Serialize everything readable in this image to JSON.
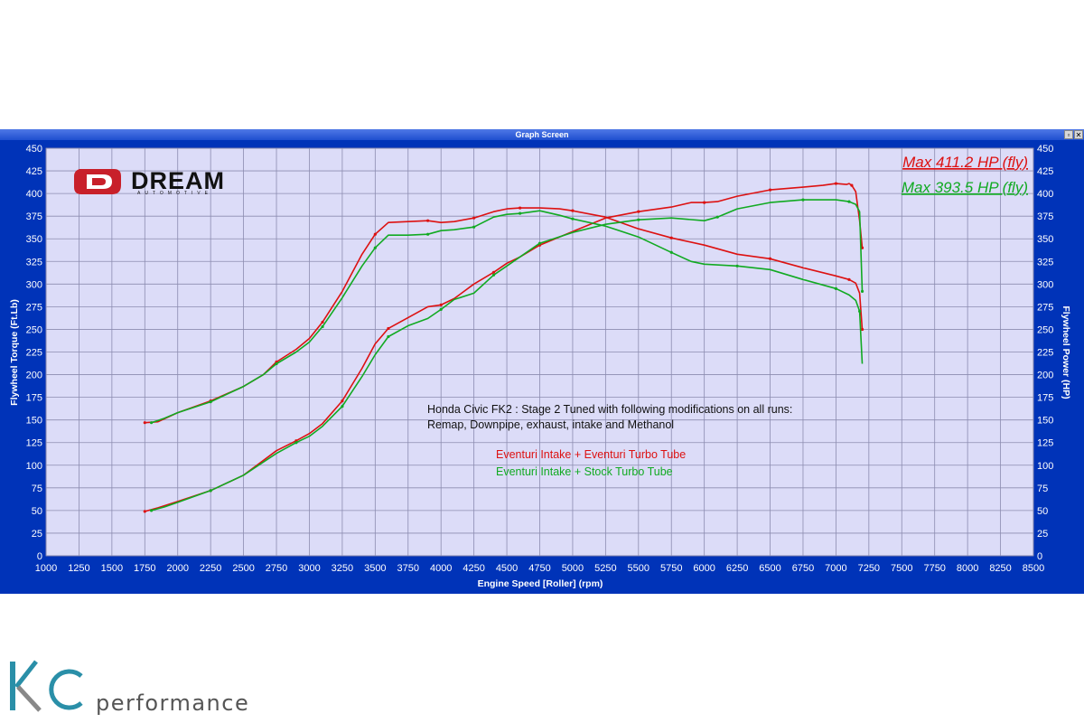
{
  "window": {
    "title": "Graph Screen",
    "minimize_label": "▫",
    "close_label": "✕"
  },
  "logos": {
    "dream": "DREAM",
    "dream_sub": "AUTOMOTIVE",
    "kc": "KC",
    "kc_word": "performance"
  },
  "chart_data": {
    "type": "line",
    "xlabel": "Engine Speed [Roller] (rpm)",
    "ylabel_left": "Flywheel Torque (Ft.Lb)",
    "ylabel_right": "Flywheel Power (HP)",
    "xlim": [
      1000,
      8500
    ],
    "ylim": [
      0,
      450
    ],
    "x_ticks": [
      1000,
      1250,
      1500,
      1750,
      2000,
      2250,
      2500,
      2750,
      3000,
      3250,
      3500,
      3750,
      4000,
      4250,
      4500,
      4750,
      5000,
      5250,
      5500,
      5750,
      6000,
      6250,
      6500,
      6750,
      7000,
      7250,
      7500,
      7750,
      8000,
      8250,
      8500
    ],
    "y_ticks": [
      0,
      25,
      50,
      75,
      100,
      125,
      150,
      175,
      200,
      225,
      250,
      275,
      300,
      325,
      350,
      375,
      400,
      425,
      450
    ],
    "grid": true,
    "max_labels": [
      {
        "text": "Max 411.2 HP (fly)",
        "color": "#dd1111"
      },
      {
        "text": "Max 393.5 HP (fly)",
        "color": "#11aa22"
      }
    ],
    "annotation": {
      "line1": "Honda Civic FK2 : Stage 2 Tuned with following modifications on all runs:",
      "line2": "Remap, Downpipe, exhaust, intake and Methanol"
    },
    "series": [
      {
        "name": "Eventuri Intake + Eventuri Turbo Tube",
        "color": "#dd1111",
        "torque": {
          "x": [
            1750,
            1850,
            2000,
            2250,
            2500,
            2650,
            2750,
            2900,
            3000,
            3100,
            3250,
            3400,
            3500,
            3600,
            3750,
            3900,
            4000,
            4100,
            4250,
            4400,
            4500,
            4600,
            4750,
            4900,
            5000,
            5250,
            5500,
            5750,
            6000,
            6250,
            6500,
            6750,
            7000,
            7100,
            7150,
            7180,
            7200
          ],
          "y": [
            147,
            148,
            158,
            171,
            187,
            200,
            214,
            228,
            240,
            258,
            292,
            333,
            355,
            368,
            369,
            370,
            368,
            369,
            373,
            380,
            383,
            384,
            384,
            383,
            381,
            374,
            361,
            351,
            343,
            333,
            328,
            318,
            309,
            305,
            301,
            290,
            250
          ]
        },
        "power": {
          "x": [
            1750,
            1850,
            2000,
            2250,
            2500,
            2750,
            2900,
            3000,
            3100,
            3250,
            3400,
            3500,
            3600,
            3750,
            3900,
            4000,
            4100,
            4250,
            4400,
            4500,
            4600,
            4750,
            5000,
            5250,
            5500,
            5750,
            5900,
            6000,
            6100,
            6250,
            6500,
            6750,
            6900,
            7000,
            7080,
            7100,
            7120,
            7150,
            7180,
            7200
          ],
          "y": [
            49,
            53,
            60,
            72,
            89,
            116,
            127,
            135,
            146,
            171,
            207,
            234,
            251,
            263,
            275,
            277,
            284,
            300,
            313,
            323,
            330,
            343,
            358,
            373,
            380,
            385,
            390,
            390,
            391,
            397,
            404,
            407,
            409,
            411,
            410,
            411,
            409,
            402,
            370,
            340
          ]
        }
      },
      {
        "name": "Eventuri Intake + Stock Turbo Tube",
        "color": "#11aa22",
        "torque": {
          "x": [
            1800,
            1900,
            2000,
            2250,
            2500,
            2650,
            2750,
            2900,
            3000,
            3100,
            3250,
            3400,
            3500,
            3600,
            3750,
            3900,
            4000,
            4100,
            4250,
            4400,
            4500,
            4600,
            4750,
            4900,
            5000,
            5250,
            5500,
            5750,
            5900,
            6000,
            6250,
            6500,
            6750,
            7000,
            7100,
            7150,
            7180,
            7200
          ],
          "y": [
            147,
            152,
            158,
            170,
            187,
            200,
            212,
            225,
            236,
            253,
            285,
            320,
            340,
            354,
            354,
            355,
            359,
            360,
            363,
            374,
            377,
            378,
            381,
            376,
            372,
            364,
            352,
            335,
            325,
            322,
            320,
            316,
            305,
            295,
            288,
            282,
            270,
            212
          ]
        },
        "power": {
          "x": [
            1800,
            1900,
            2000,
            2250,
            2500,
            2750,
            2900,
            3000,
            3100,
            3250,
            3400,
            3500,
            3600,
            3750,
            3900,
            4000,
            4100,
            4250,
            4400,
            4500,
            4600,
            4750,
            5000,
            5250,
            5500,
            5750,
            6000,
            6100,
            6250,
            6500,
            6750,
            6900,
            7000,
            7100,
            7150,
            7180,
            7200
          ],
          "y": [
            50,
            54,
            59,
            72,
            89,
            113,
            125,
            132,
            143,
            165,
            198,
            222,
            242,
            254,
            262,
            272,
            283,
            290,
            310,
            320,
            330,
            345,
            357,
            366,
            371,
            373,
            370,
            374,
            383,
            390,
            393,
            393,
            393,
            391,
            388,
            380,
            292
          ]
        }
      }
    ]
  }
}
